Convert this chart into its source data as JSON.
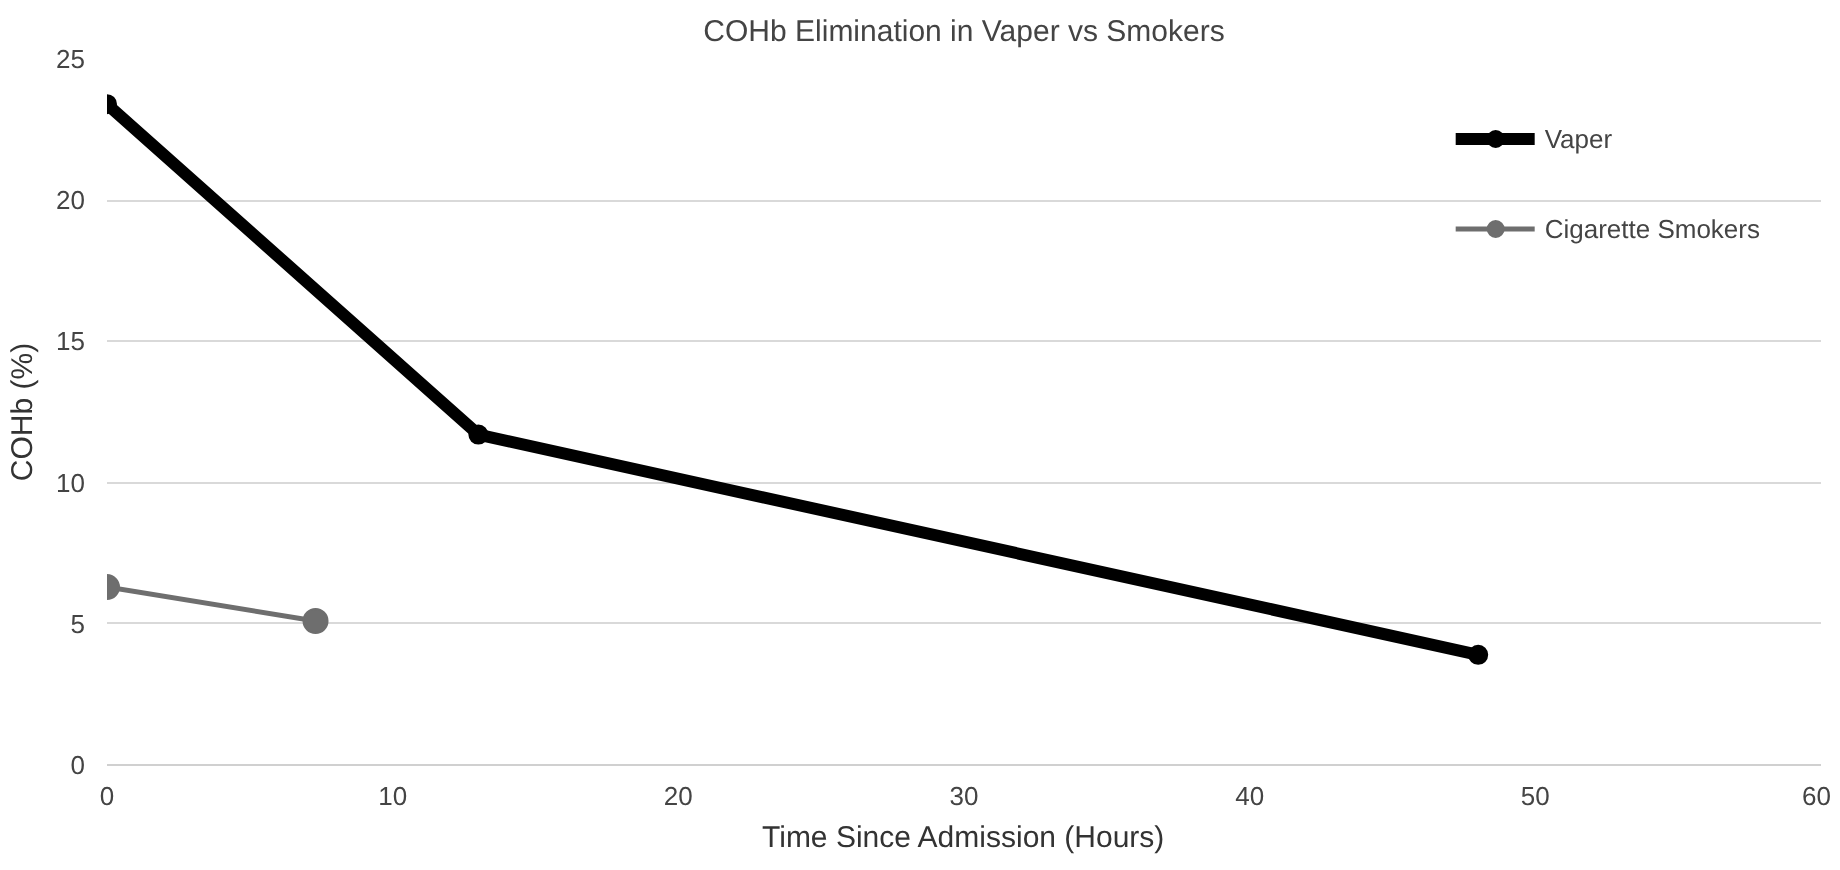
{
  "chart_data": {
    "type": "line",
    "title": "COHb Elimination in Vaper vs Smokers",
    "xlabel": "Time Since Admission (Hours)",
    "ylabel": "COHb (%)",
    "series": [
      {
        "name": "Vaper",
        "color": "#000000",
        "x": [
          0,
          13,
          48
        ],
        "values": [
          23.4,
          11.7,
          3.9
        ]
      },
      {
        "name": "Cigarette Smokers",
        "color": "#6e6e6e",
        "x": [
          0,
          7.3
        ],
        "values": [
          6.3,
          5.1
        ]
      }
    ],
    "xlim": [
      0,
      60
    ],
    "xticks": [
      0,
      10,
      20,
      30,
      40,
      50,
      60
    ],
    "ylim": [
      0,
      25
    ],
    "yticks": [
      0,
      5,
      10,
      15,
      20,
      25
    ],
    "grid": "y",
    "legend": "top right",
    "marker": "circle",
    "line_style": "solid"
  }
}
